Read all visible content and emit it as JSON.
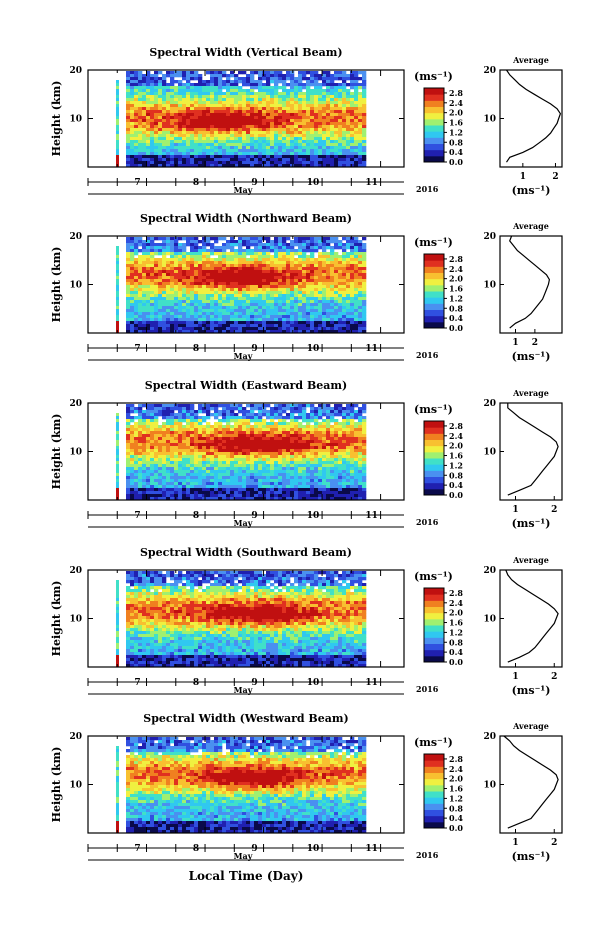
{
  "figure": {
    "xlabel": "Local Time (Day)",
    "month_label": "May",
    "year_label": "2016",
    "unit_label": "(ms⁻¹)",
    "average_title": "Average",
    "average_unit": "(ms⁻¹)"
  },
  "colormap": [
    "#0a0a4a",
    "#2020b0",
    "#3050e0",
    "#4a90f0",
    "#30c8f0",
    "#40e0c8",
    "#a0f070",
    "#f0f040",
    "#f8c030",
    "#f08020",
    "#e03020",
    "#c01010"
  ],
  "chart_data": [
    {
      "type": "heatmap",
      "title": "Spectral Width (Vertical Beam)",
      "ylabel": "Height (km)",
      "x_days": [
        7,
        8,
        9,
        10,
        11
      ],
      "xlim_day": [
        6.0,
        11.4
      ],
      "data_start_day": 6.65,
      "data_end_day": 10.7,
      "ylim_km": [
        0,
        20
      ],
      "y_ticks": [
        10,
        20
      ],
      "colorbar_ticks": [
        "0.0",
        "0.4",
        "0.8",
        "1.2",
        "1.6",
        "2.0",
        "2.4",
        "2.8"
      ],
      "colorbar_range": [
        0.0,
        3.0
      ],
      "peak_height_km": 10.5,
      "peak_center_day": 8.3,
      "average": {
        "xlim": [
          0.3,
          2.2
        ],
        "x_ticks": [
          1,
          2
        ],
        "ylim_km": [
          0,
          20
        ],
        "y_ticks": [
          10,
          20
        ],
        "heights_km": [
          1,
          2,
          3,
          4,
          5,
          6,
          7,
          8,
          9,
          10,
          11,
          12,
          13,
          14,
          15,
          16,
          17,
          18,
          19,
          20
        ],
        "values": [
          0.5,
          0.6,
          1.0,
          1.3,
          1.5,
          1.7,
          1.85,
          1.95,
          2.05,
          2.1,
          2.15,
          2.05,
          1.85,
          1.6,
          1.35,
          1.1,
          0.9,
          0.75,
          0.6,
          0.5
        ]
      }
    },
    {
      "type": "heatmap",
      "title": "Spectral Width (Northward Beam)",
      "ylabel": "Height (km)",
      "x_days": [
        7,
        8,
        9,
        10,
        11
      ],
      "xlim_day": [
        6.0,
        11.4
      ],
      "data_start_day": 6.65,
      "data_end_day": 10.7,
      "ylim_km": [
        0,
        20
      ],
      "y_ticks": [
        10,
        20
      ],
      "colorbar_ticks": [
        "0.0",
        "0.4",
        "0.8",
        "1.2",
        "1.6",
        "2.0",
        "2.4",
        "2.8"
      ],
      "colorbar_range": [
        0.0,
        3.0
      ],
      "peak_height_km": 12.5,
      "peak_center_day": 8.6,
      "average": {
        "xlim": [
          0.2,
          3.4
        ],
        "x_ticks": [
          1,
          2
        ],
        "ylim_km": [
          0,
          20
        ],
        "y_ticks": [
          10,
          20
        ],
        "heights_km": [
          1,
          2,
          3,
          4,
          5,
          6,
          7,
          8,
          9,
          10,
          11,
          12,
          13,
          14,
          15,
          16,
          17,
          18,
          19,
          20
        ],
        "values": [
          0.7,
          1.0,
          1.5,
          1.8,
          2.0,
          2.2,
          2.4,
          2.5,
          2.6,
          2.7,
          2.75,
          2.6,
          2.3,
          2.0,
          1.7,
          1.4,
          1.1,
          0.9,
          0.7,
          0.8
        ]
      }
    },
    {
      "type": "heatmap",
      "title": "Spectral Width (Eastward Beam)",
      "ylabel": "Height (km)",
      "x_days": [
        7,
        8,
        9,
        10,
        11
      ],
      "xlim_day": [
        6.0,
        11.4
      ],
      "data_start_day": 6.65,
      "data_end_day": 10.7,
      "ylim_km": [
        0,
        20
      ],
      "y_ticks": [
        10,
        20
      ],
      "colorbar_ticks": [
        "0.0",
        "0.4",
        "0.8",
        "1.2",
        "1.6",
        "2.0",
        "2.4",
        "2.8"
      ],
      "colorbar_range": [
        0.0,
        3.0
      ],
      "peak_height_km": 12.5,
      "peak_center_day": 8.9,
      "average": {
        "xlim": [
          0.6,
          2.2
        ],
        "x_ticks": [
          1,
          2
        ],
        "ylim_km": [
          0,
          20
        ],
        "y_ticks": [
          10,
          20
        ],
        "heights_km": [
          1,
          2,
          3,
          4,
          5,
          6,
          7,
          8,
          9,
          10,
          11,
          12,
          13,
          14,
          15,
          16,
          17,
          18,
          19,
          20
        ],
        "values": [
          0.8,
          1.1,
          1.4,
          1.5,
          1.6,
          1.7,
          1.8,
          1.9,
          2.0,
          2.05,
          2.1,
          2.05,
          1.9,
          1.7,
          1.5,
          1.3,
          1.1,
          0.95,
          0.8,
          0.8
        ]
      }
    },
    {
      "type": "heatmap",
      "title": "Spectral Width (Southward Beam)",
      "ylabel": "Height (km)",
      "x_days": [
        7,
        8,
        9,
        10,
        11
      ],
      "xlim_day": [
        6.0,
        11.4
      ],
      "data_start_day": 6.65,
      "data_end_day": 10.7,
      "ylim_km": [
        0,
        20
      ],
      "y_ticks": [
        10,
        20
      ],
      "colorbar_ticks": [
        "0.0",
        "0.4",
        "0.8",
        "1.2",
        "1.6",
        "2.0",
        "2.4",
        "2.8"
      ],
      "colorbar_range": [
        0.0,
        3.0
      ],
      "peak_height_km": 12.0,
      "peak_center_day": 8.9,
      "average": {
        "xlim": [
          0.6,
          2.2
        ],
        "x_ticks": [
          1,
          2
        ],
        "ylim_km": [
          0,
          20
        ],
        "y_ticks": [
          10,
          20
        ],
        "heights_km": [
          1,
          2,
          3,
          4,
          5,
          6,
          7,
          8,
          9,
          10,
          11,
          12,
          13,
          14,
          15,
          16,
          17,
          18,
          19,
          20
        ],
        "values": [
          0.8,
          1.1,
          1.35,
          1.5,
          1.6,
          1.7,
          1.8,
          1.9,
          2.0,
          2.05,
          2.1,
          2.0,
          1.85,
          1.65,
          1.45,
          1.25,
          1.05,
          0.9,
          0.8,
          0.75
        ]
      }
    },
    {
      "type": "heatmap",
      "title": "Spectral Width (Westward Beam)",
      "ylabel": "Height (km)",
      "x_days": [
        7,
        8,
        9,
        10,
        11
      ],
      "xlim_day": [
        6.0,
        11.4
      ],
      "data_start_day": 6.65,
      "data_end_day": 10.7,
      "ylim_km": [
        0,
        20
      ],
      "y_ticks": [
        10,
        20
      ],
      "colorbar_ticks": [
        "0.0",
        "0.4",
        "0.8",
        "1.2",
        "1.6",
        "2.0",
        "2.4",
        "2.8"
      ],
      "colorbar_range": [
        0.0,
        3.0
      ],
      "peak_height_km": 12.5,
      "peak_center_day": 8.8,
      "average": {
        "xlim": [
          0.6,
          2.2
        ],
        "x_ticks": [
          1,
          2
        ],
        "ylim_km": [
          0,
          20
        ],
        "y_ticks": [
          10,
          20
        ],
        "heights_km": [
          1,
          2,
          3,
          4,
          5,
          6,
          7,
          8,
          9,
          10,
          11,
          12,
          13,
          14,
          15,
          16,
          17,
          18,
          19,
          20
        ],
        "values": [
          0.8,
          1.1,
          1.4,
          1.5,
          1.6,
          1.7,
          1.8,
          1.9,
          2.0,
          2.05,
          2.1,
          2.05,
          1.9,
          1.7,
          1.5,
          1.3,
          1.1,
          0.95,
          0.85,
          0.7
        ]
      }
    }
  ]
}
